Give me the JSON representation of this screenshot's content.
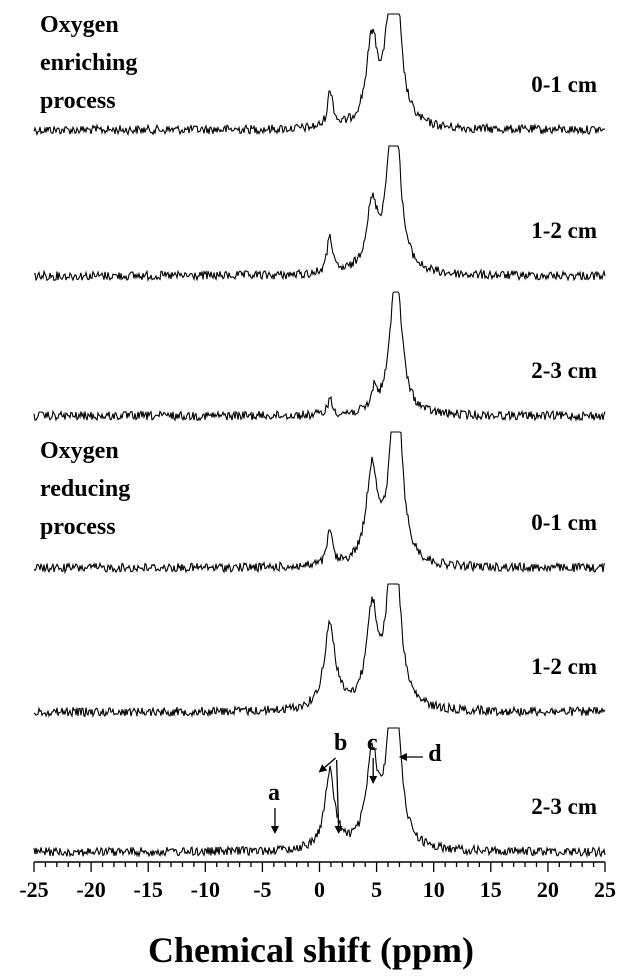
{
  "chart_data": {
    "type": "line",
    "subtype": "stacked NMR spectra",
    "xlabel": "Chemical shift (ppm)",
    "xlim": [
      -25,
      25
    ],
    "xticks": [
      -25,
      -20,
      -15,
      -10,
      -5,
      0,
      5,
      10,
      15,
      20,
      25
    ],
    "y_axis_shown": false,
    "grid": false,
    "line_color": "#000000",
    "groups": [
      {
        "label": "Oxygen enriching process",
        "lines": [
          "Oxygen",
          "enriching",
          "process"
        ],
        "series_index": 0
      },
      {
        "label": "Oxygen reducing process",
        "lines": [
          "Oxygen",
          "reducing",
          "process"
        ],
        "series_index": 3
      }
    ],
    "series": [
      {
        "name": "0-1 cm",
        "group": "Oxygen enriching process",
        "peaks": [
          {
            "x": 0.9,
            "h": 0.28
          },
          {
            "x": 1.1,
            "h": 0.1
          },
          {
            "x": 4.6,
            "h": 0.8
          },
          {
            "x": 6.5,
            "h": 2.0
          }
        ]
      },
      {
        "name": "1-2 cm",
        "group": "Oxygen enriching process",
        "peaks": [
          {
            "x": 0.9,
            "h": 0.28
          },
          {
            "x": 0.9,
            "h": 0.1
          },
          {
            "x": 4.6,
            "h": 0.6
          },
          {
            "x": 6.5,
            "h": 2.0
          }
        ]
      },
      {
        "name": "2-3 cm",
        "group": "Oxygen enriching process",
        "peaks": [
          {
            "x": 0.9,
            "h": 0.15
          },
          {
            "x": 4.8,
            "h": 0.2
          },
          {
            "x": 6.7,
            "h": 1.4
          }
        ]
      },
      {
        "name": "0-1 cm",
        "group": "Oxygen reducing process",
        "peaks": [
          {
            "x": 0.9,
            "h": 0.35
          },
          {
            "x": 4.6,
            "h": 0.9
          },
          {
            "x": 6.7,
            "h": 2.0
          }
        ]
      },
      {
        "name": "1-2 cm",
        "group": "Oxygen reducing process",
        "peaks": [
          {
            "x": 0.9,
            "h": 0.8
          },
          {
            "x": 4.6,
            "h": 0.9
          },
          {
            "x": 6.5,
            "h": 2.0
          }
        ]
      },
      {
        "name": "2-3 cm",
        "group": "Oxygen reducing process",
        "peaks": [
          {
            "x": 0.9,
            "h": 0.6
          },
          {
            "x": 0.9,
            "h": 0.15
          },
          {
            "x": 4.6,
            "h": 0.85
          },
          {
            "x": 6.5,
            "h": 2.0
          }
        ]
      }
    ],
    "annotations": [
      {
        "label": "a",
        "x": -3.9
      },
      {
        "label": "b",
        "x": 0.8
      },
      {
        "label": "c",
        "x": 4.7
      },
      {
        "label": "d",
        "x": 6.6
      }
    ]
  }
}
